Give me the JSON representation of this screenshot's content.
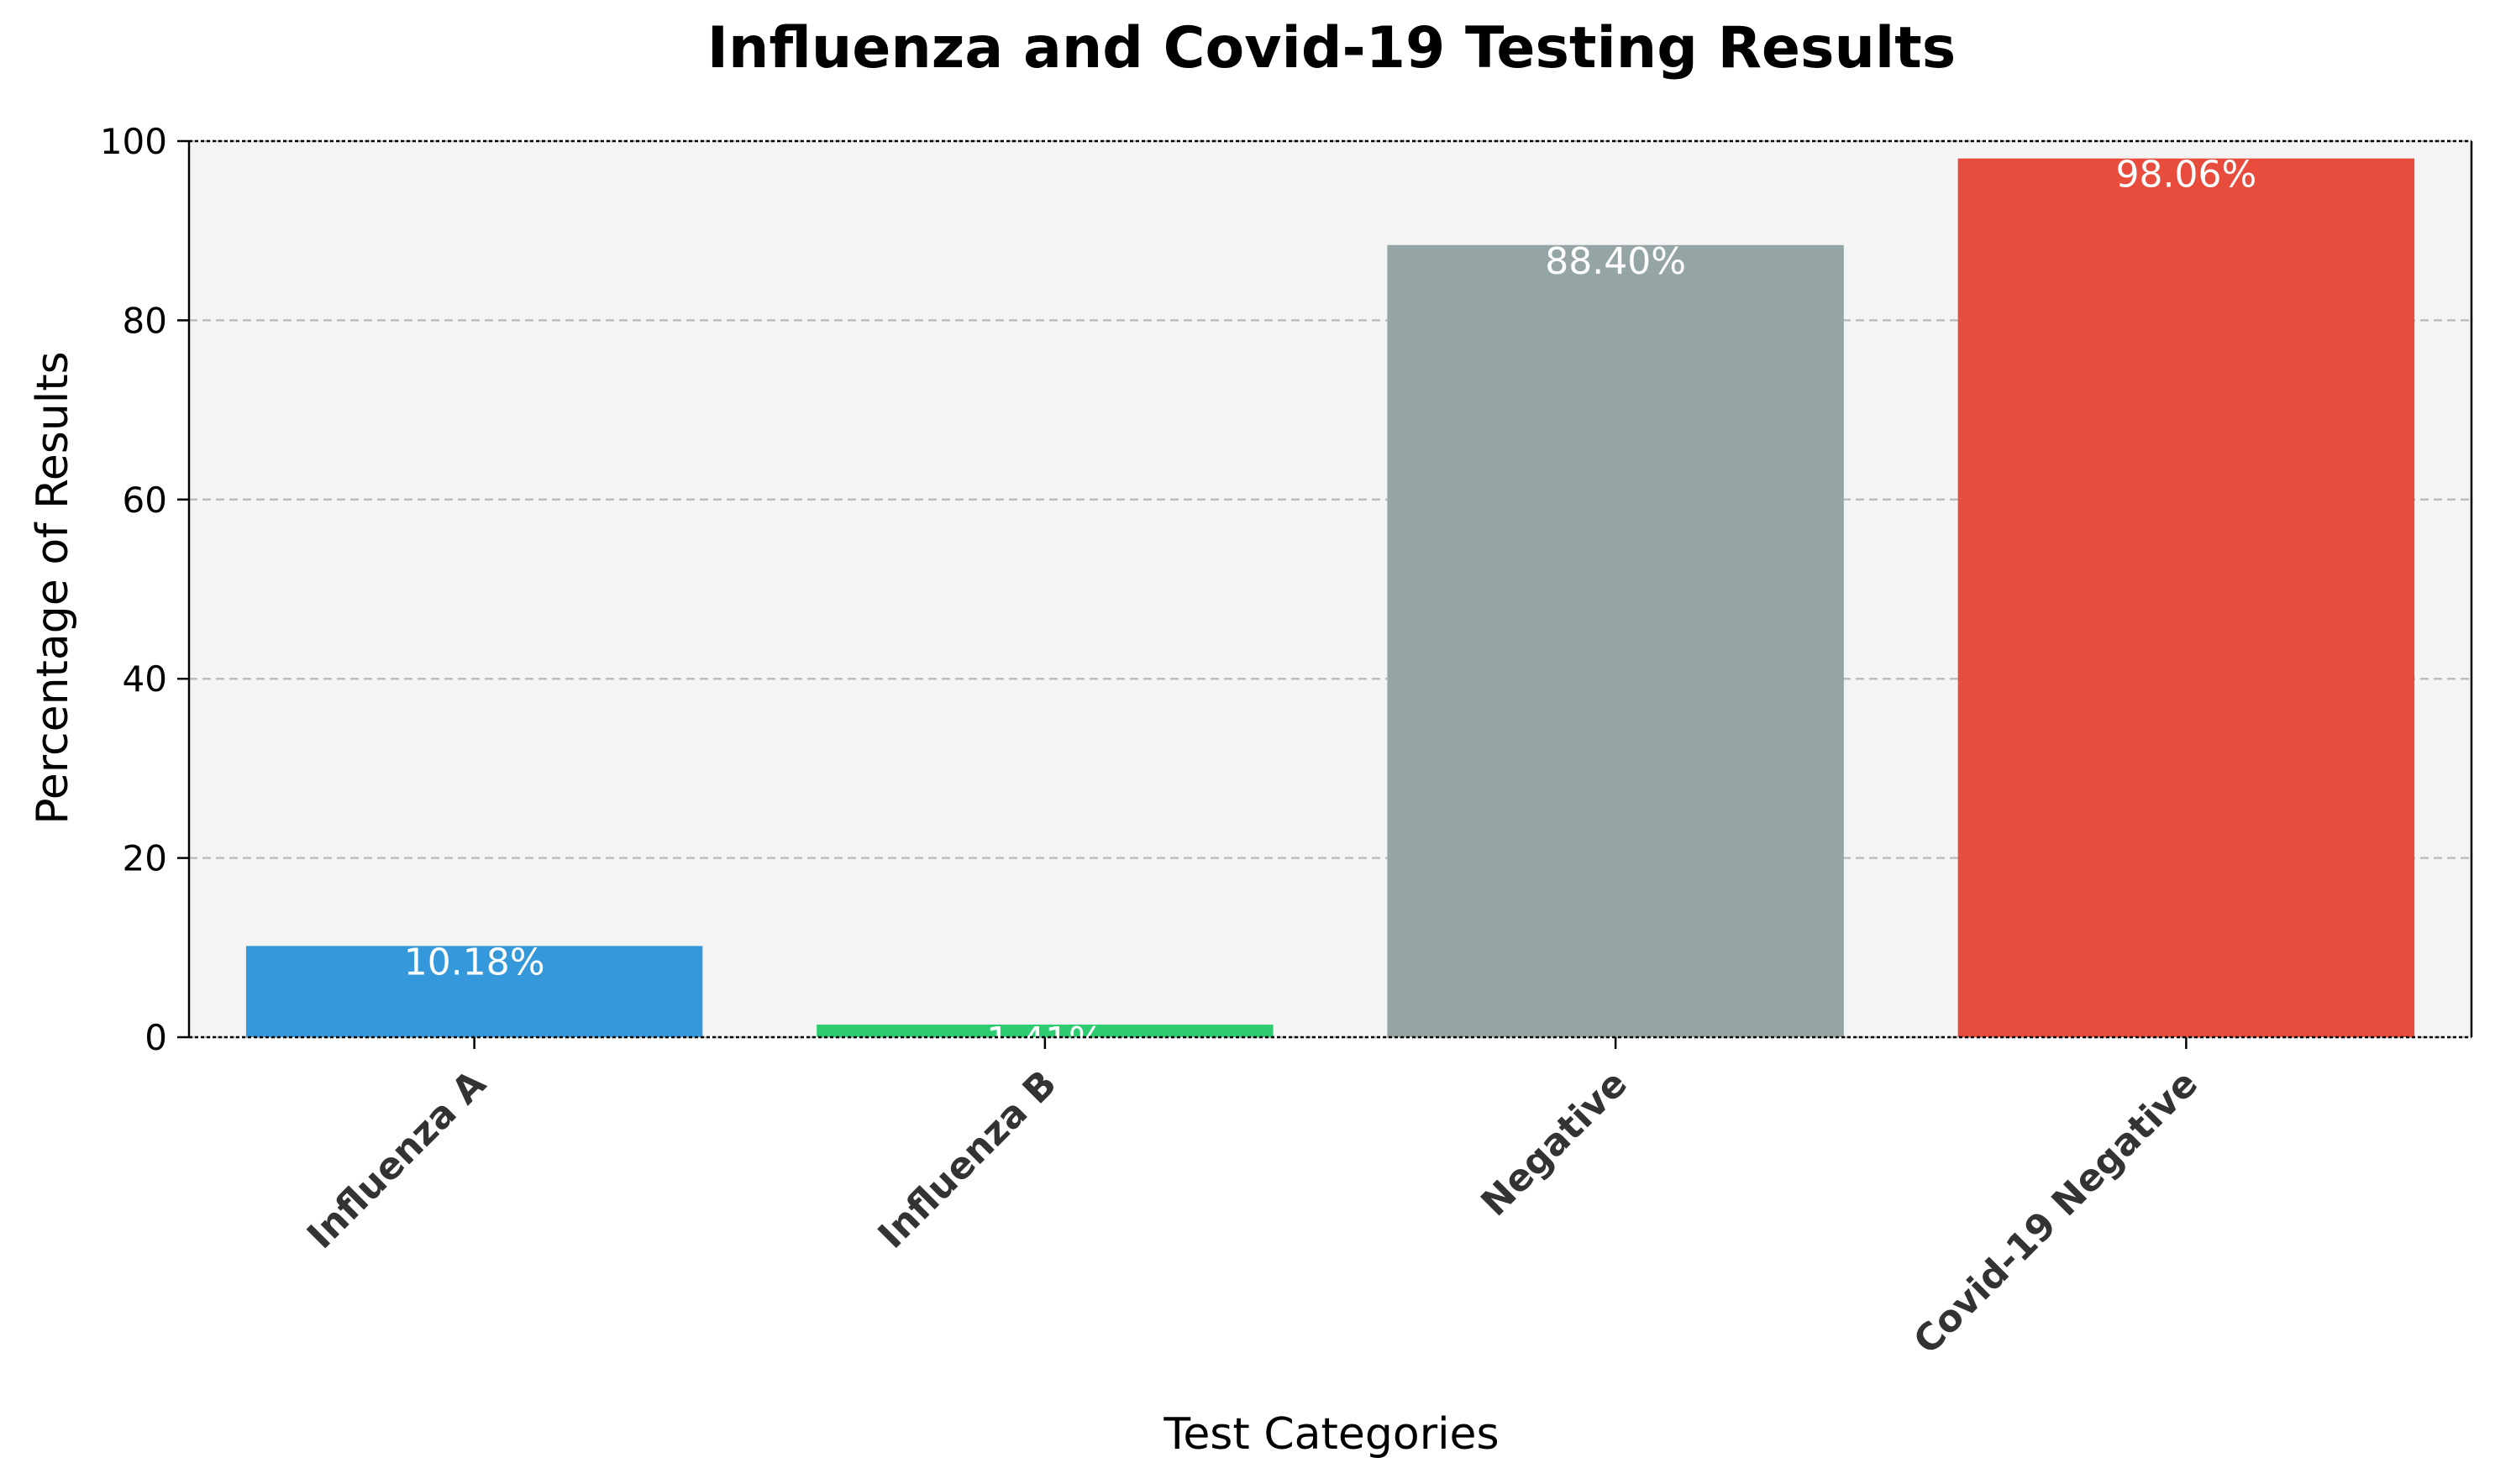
{
  "chart_data": {
    "type": "bar",
    "title": "Influenza and Covid-19 Testing Results",
    "xlabel": "Test Categories",
    "ylabel": "Percentage of Results",
    "categories": [
      "Influenza A",
      "Influenza B",
      "Negative",
      "Covid-19 Negative"
    ],
    "values": [
      10.18,
      1.41,
      88.4,
      98.06
    ],
    "value_labels": [
      "10.18%",
      "1.41%",
      "88.40%",
      "98.06%"
    ],
    "colors": [
      "#3498db",
      "#2ecc71",
      "#95a5a6",
      "#e74c3c"
    ],
    "ylim": [
      0,
      100
    ],
    "yticks": [
      0,
      20,
      40,
      60,
      80,
      100
    ],
    "grid": "y-dashed",
    "legend": "none",
    "plot_background": "#f4f4f4"
  }
}
